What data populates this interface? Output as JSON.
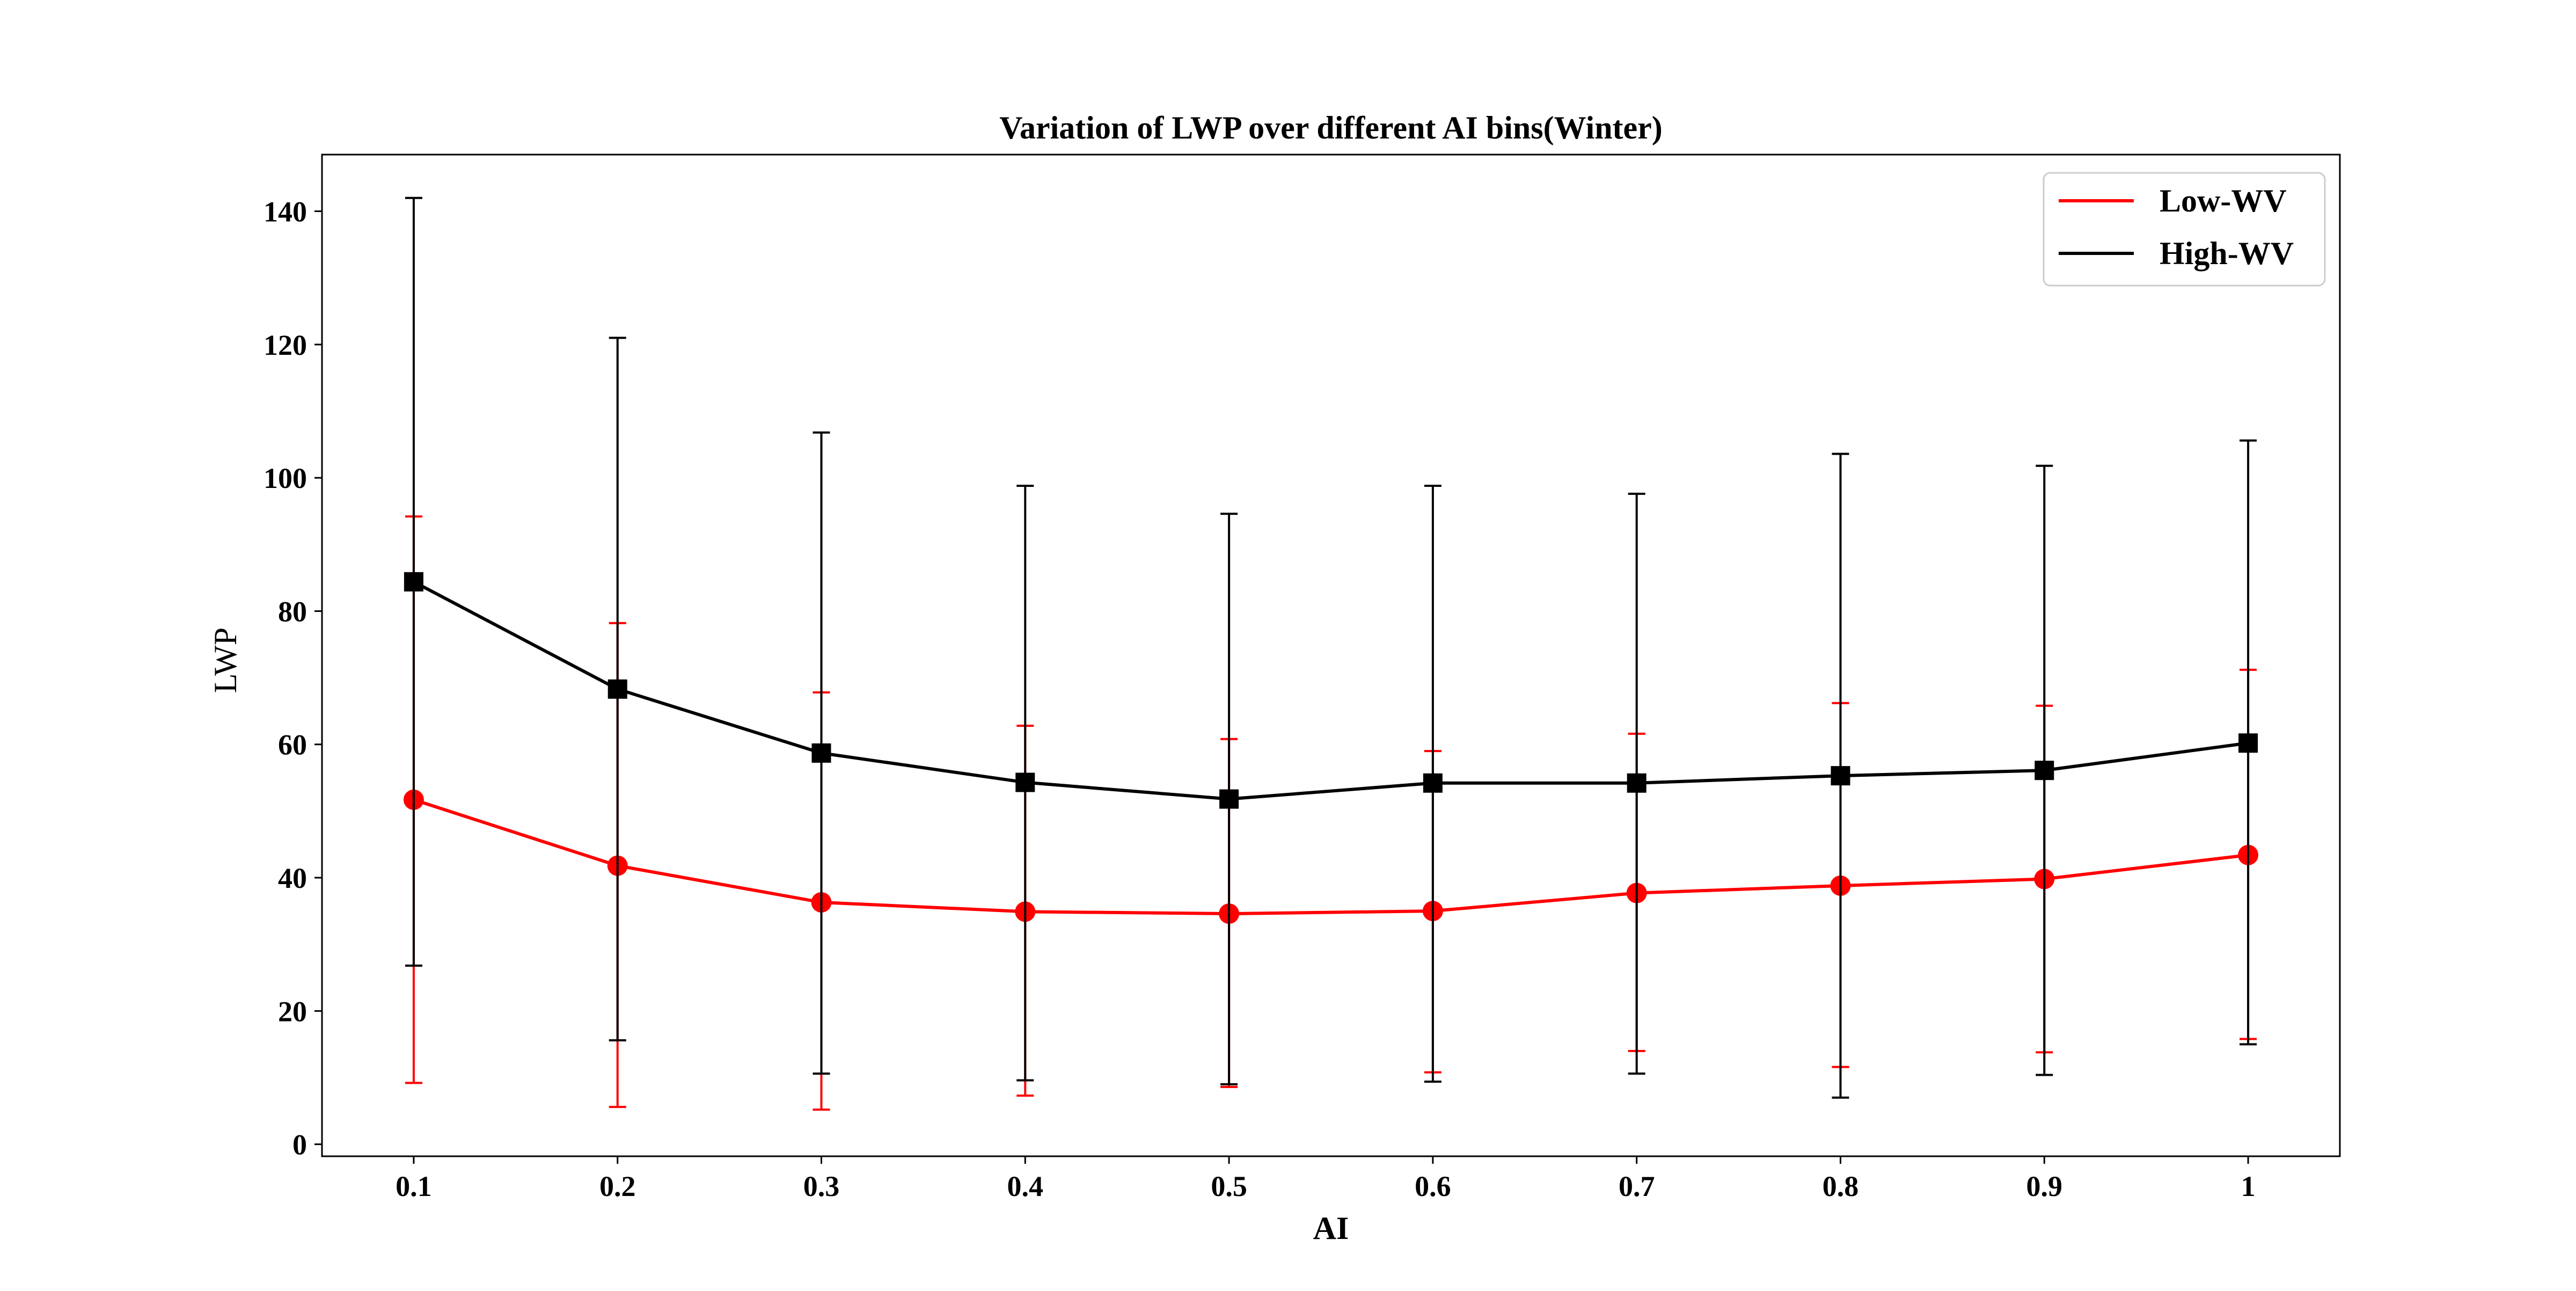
{
  "chart_data": {
    "type": "line",
    "title": "Variation of LWP over different AI bins(Winter)",
    "xlabel": "AI",
    "ylabel": "LWP",
    "x": [
      0.1,
      0.2,
      0.3,
      0.4,
      0.5,
      0.6,
      0.7,
      0.8,
      0.9,
      1.0
    ],
    "x_tick_labels": [
      "0.1",
      "0.2",
      "0.3",
      "0.4",
      "0.5",
      "0.6",
      "0.7",
      "0.8",
      "0.9",
      "1"
    ],
    "y_ticks": [
      0,
      20,
      40,
      60,
      80,
      100,
      120,
      140
    ],
    "y_tick_labels": [
      "0",
      "20",
      "40",
      "60",
      "80",
      "100",
      "120",
      "140"
    ],
    "xlim": [
      0.055,
      1.045
    ],
    "ylim": [
      -1.8,
      148.5
    ],
    "grid": false,
    "legend_position": "top-right",
    "series": [
      {
        "name": "Low-WV",
        "color": "#ff0000",
        "marker": "circle",
        "values": [
          51.7,
          41.8,
          36.3,
          34.9,
          34.6,
          35.0,
          37.7,
          38.8,
          39.8,
          43.4
        ],
        "error_low": [
          9.2,
          5.6,
          5.2,
          7.3,
          8.6,
          10.8,
          14.0,
          11.6,
          13.8,
          15.8
        ],
        "error_high": [
          94.2,
          78.2,
          67.8,
          62.8,
          60.8,
          59.0,
          61.6,
          66.2,
          65.8,
          71.2
        ]
      },
      {
        "name": "High-WV",
        "color": "#000000",
        "marker": "square",
        "values": [
          84.4,
          68.3,
          58.7,
          54.3,
          51.8,
          54.2,
          54.2,
          55.3,
          56.1,
          60.2
        ],
        "error_low": [
          26.8,
          15.6,
          10.6,
          9.6,
          9.0,
          9.4,
          10.6,
          7.0,
          10.4,
          15.0
        ],
        "error_high": [
          142.0,
          121.0,
          106.8,
          98.8,
          94.6,
          98.8,
          97.6,
          103.6,
          101.8,
          105.6
        ]
      }
    ]
  }
}
